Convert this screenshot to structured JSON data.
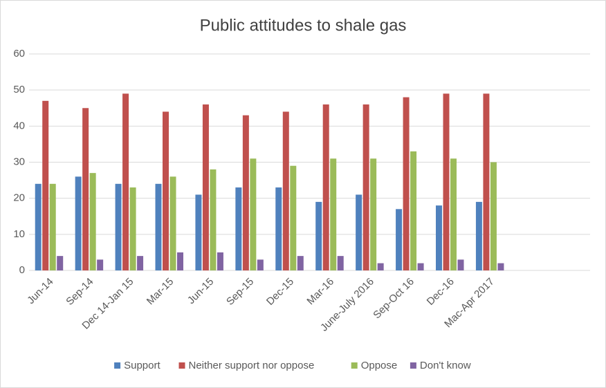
{
  "chart_data": {
    "type": "bar",
    "title": "Public attitudes to shale gas",
    "categories": [
      "Jun-14",
      "Sep-14",
      "Dec 14-Jan 15",
      "Mar-15",
      "Jun-15",
      "Sep-15",
      "Dec-15",
      "Mar-16",
      "June-July 2016",
      "Sep-Oct 16",
      "Dec-16",
      "Mac-Apr 2017",
      null,
      null
    ],
    "series": [
      {
        "name": "Support",
        "color": "#4f81bd",
        "values": [
          24,
          26,
          24,
          24,
          21,
          23,
          23,
          19,
          21,
          17,
          18,
          19,
          null,
          null
        ]
      },
      {
        "name": "Neither support nor oppose",
        "color": "#c0504d",
        "values": [
          47,
          45,
          49,
          44,
          46,
          43,
          44,
          46,
          46,
          48,
          49,
          49,
          null,
          null
        ]
      },
      {
        "name": "Oppose",
        "color": "#9bbb59",
        "values": [
          24,
          27,
          23,
          26,
          28,
          31,
          29,
          31,
          31,
          33,
          31,
          30,
          null,
          null
        ]
      },
      {
        "name": "Don't know",
        "color": "#8064a2",
        "values": [
          4,
          3,
          4,
          5,
          5,
          3,
          4,
          4,
          2,
          2,
          3,
          2,
          null,
          null
        ]
      }
    ],
    "ylim": [
      0,
      60
    ],
    "yticks": [
      0,
      10,
      20,
      30,
      40,
      50,
      60
    ],
    "grid": true,
    "legend": "bottom"
  }
}
